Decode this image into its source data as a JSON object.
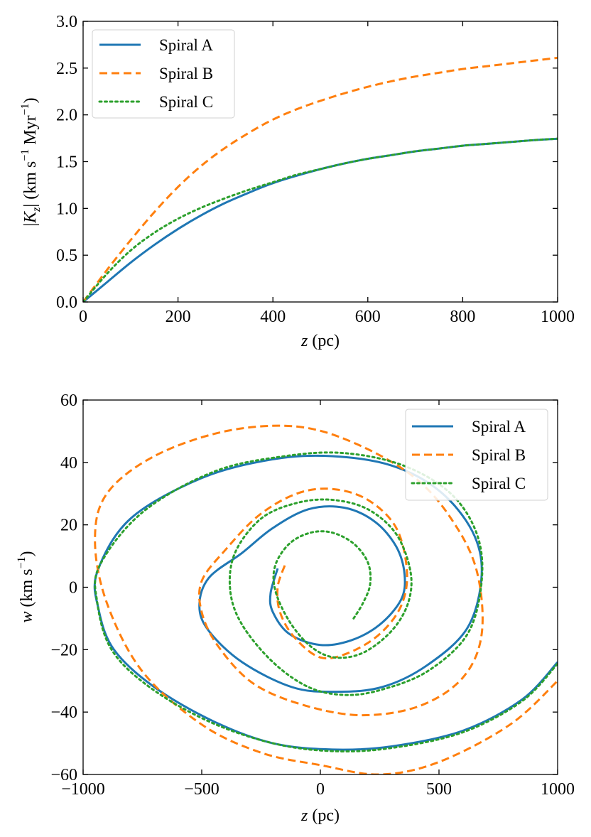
{
  "chart_data": [
    {
      "type": "line",
      "xlabel": "z (pc)",
      "ylabel": "|Kz| (km s−1 Myr−1)",
      "xlim": [
        0,
        1000
      ],
      "ylim": [
        0,
        3.0
      ],
      "xticks": [
        0,
        200,
        400,
        600,
        800,
        1000
      ],
      "yticks": [
        0.0,
        0.5,
        1.0,
        1.5,
        2.0,
        2.5,
        3.0
      ],
      "xtick_labels": [
        "0",
        "200",
        "400",
        "600",
        "800",
        "1000"
      ],
      "ytick_labels": [
        "0.0",
        "0.5",
        "1.0",
        "1.5",
        "2.0",
        "2.5",
        "3.0"
      ],
      "legend": "top-left",
      "series": [
        {
          "name": "Spiral A",
          "color": "#1f77b4",
          "style": "solid",
          "x": [
            0,
            50,
            100,
            150,
            200,
            250,
            300,
            350,
            400,
            450,
            500,
            550,
            600,
            650,
            700,
            750,
            800,
            850,
            900,
            950,
            1000
          ],
          "y": [
            0.0,
            0.21,
            0.42,
            0.61,
            0.78,
            0.93,
            1.06,
            1.17,
            1.27,
            1.35,
            1.42,
            1.48,
            1.53,
            1.57,
            1.61,
            1.64,
            1.67,
            1.69,
            1.71,
            1.73,
            1.745
          ]
        },
        {
          "name": "Spiral B",
          "color": "#ff7f0e",
          "style": "dashed",
          "x": [
            0,
            50,
            100,
            150,
            200,
            250,
            300,
            350,
            400,
            450,
            500,
            550,
            600,
            650,
            700,
            750,
            800,
            850,
            900,
            950,
            1000
          ],
          "y": [
            0.0,
            0.34,
            0.66,
            0.96,
            1.23,
            1.46,
            1.65,
            1.81,
            1.95,
            2.06,
            2.15,
            2.23,
            2.3,
            2.36,
            2.41,
            2.45,
            2.49,
            2.52,
            2.55,
            2.58,
            2.61
          ]
        },
        {
          "name": "Spiral C",
          "color": "#2ca02c",
          "style": "dotted",
          "x": [
            0,
            50,
            100,
            150,
            200,
            250,
            300,
            350,
            400,
            450,
            500,
            550,
            600,
            650,
            700,
            750,
            800,
            850,
            900,
            950,
            1000
          ],
          "y": [
            0.0,
            0.3,
            0.55,
            0.74,
            0.89,
            1.01,
            1.11,
            1.2,
            1.28,
            1.36,
            1.42,
            1.48,
            1.53,
            1.57,
            1.61,
            1.64,
            1.67,
            1.69,
            1.71,
            1.73,
            1.745
          ]
        }
      ]
    },
    {
      "type": "line",
      "xlabel": "z (pc)",
      "ylabel": "w (km s−1)",
      "xlim": [
        -1000,
        1000
      ],
      "ylim": [
        -60,
        60
      ],
      "xticks": [
        -1000,
        -500,
        0,
        500,
        1000
      ],
      "yticks": [
        -60,
        -40,
        -20,
        0,
        20,
        40,
        60
      ],
      "xtick_labels": [
        "−1000",
        "−500",
        "0",
        "500",
        "1000"
      ],
      "ytick_labels": [
        "−60",
        "−40",
        "−20",
        "0",
        "20",
        "40",
        "60"
      ],
      "legend": "top-right",
      "series": [
        {
          "name": "Spiral A",
          "color": "#1f77b4",
          "style": "solid",
          "x": [
            -180,
            -210,
            -200,
            -130,
            0,
            130,
            250,
            340,
            355,
            320,
            230,
            100,
            -50,
            -200,
            -330,
            -470,
            -510,
            -470,
            -330,
            -120,
            60,
            260,
            450,
            620,
            680,
            640,
            500,
            300,
            50,
            -200,
            -500,
            -800,
            -940,
            -935,
            -870,
            -700,
            -450,
            -200,
            50,
            300,
            600,
            850,
            1000
          ],
          "y": [
            6,
            -2,
            -8,
            -15,
            -18.5,
            -17,
            -12,
            -4,
            4,
            13,
            21,
            25.5,
            25,
            19,
            11,
            3,
            -6,
            -14,
            -24,
            -32,
            -33.5,
            -32,
            -25,
            -13,
            4,
            18,
            31,
            39,
            42,
            41,
            35,
            22,
            5,
            -7,
            -20,
            -32,
            -43,
            -50,
            -52,
            -51,
            -46,
            -36,
            -24
          ]
        },
        {
          "name": "Spiral B",
          "color": "#ff7f0e",
          "style": "dashed",
          "x": [
            -150,
            -180,
            -170,
            -110,
            0,
            120,
            250,
            340,
            365,
            320,
            200,
            50,
            -100,
            -260,
            -400,
            -500,
            -500,
            -430,
            -280,
            -60,
            180,
            420,
            600,
            680,
            660,
            560,
            400,
            150,
            -100,
            -400,
            -700,
            -900,
            -950,
            -900,
            -750,
            -500,
            -250,
            0,
            250,
            500,
            800,
            1000
          ],
          "y": [
            7,
            0,
            -8,
            -16,
            -22.5,
            -21,
            -15,
            -6,
            5,
            19,
            28,
            31.5,
            30,
            23,
            12,
            2,
            -8,
            -19,
            -31,
            -38,
            -41,
            -38,
            -29,
            -15,
            5,
            21,
            35,
            46,
            51.5,
            50,
            42,
            30,
            15,
            -5,
            -27,
            -44,
            -53,
            -57,
            -60,
            -56,
            -44,
            -30
          ]
        },
        {
          "name": "Spiral C",
          "color": "#2ca02c",
          "style": "dotted",
          "x": [
            140,
            180,
            210,
            200,
            140,
            50,
            -40,
            -130,
            -190,
            -190,
            -130,
            -40,
            60,
            180,
            300,
            370,
            380,
            320,
            200,
            50,
            -100,
            -250,
            -360,
            -380,
            -330,
            -200,
            -50,
            100,
            250,
            450,
            620,
            680,
            660,
            550,
            350,
            100,
            -150,
            -450,
            -750,
            -930,
            -940,
            -880,
            -720,
            -470,
            -200,
            50,
            300,
            600,
            850,
            1000
          ],
          "y": [
            -10,
            -5,
            1,
            8,
            14,
            17.5,
            17.5,
            14,
            7,
            -1,
            -11,
            -19,
            -22.5,
            -21,
            -14,
            -5,
            5,
            17,
            25,
            28,
            27,
            22,
            11,
            -1,
            -12,
            -24,
            -32,
            -34.5,
            -33,
            -27,
            -15,
            2,
            17,
            30,
            39,
            43,
            42,
            37,
            24,
            7,
            -5,
            -20,
            -32,
            -43,
            -50,
            -52.5,
            -51.5,
            -46.5,
            -36.5,
            -24.5
          ]
        }
      ]
    }
  ]
}
